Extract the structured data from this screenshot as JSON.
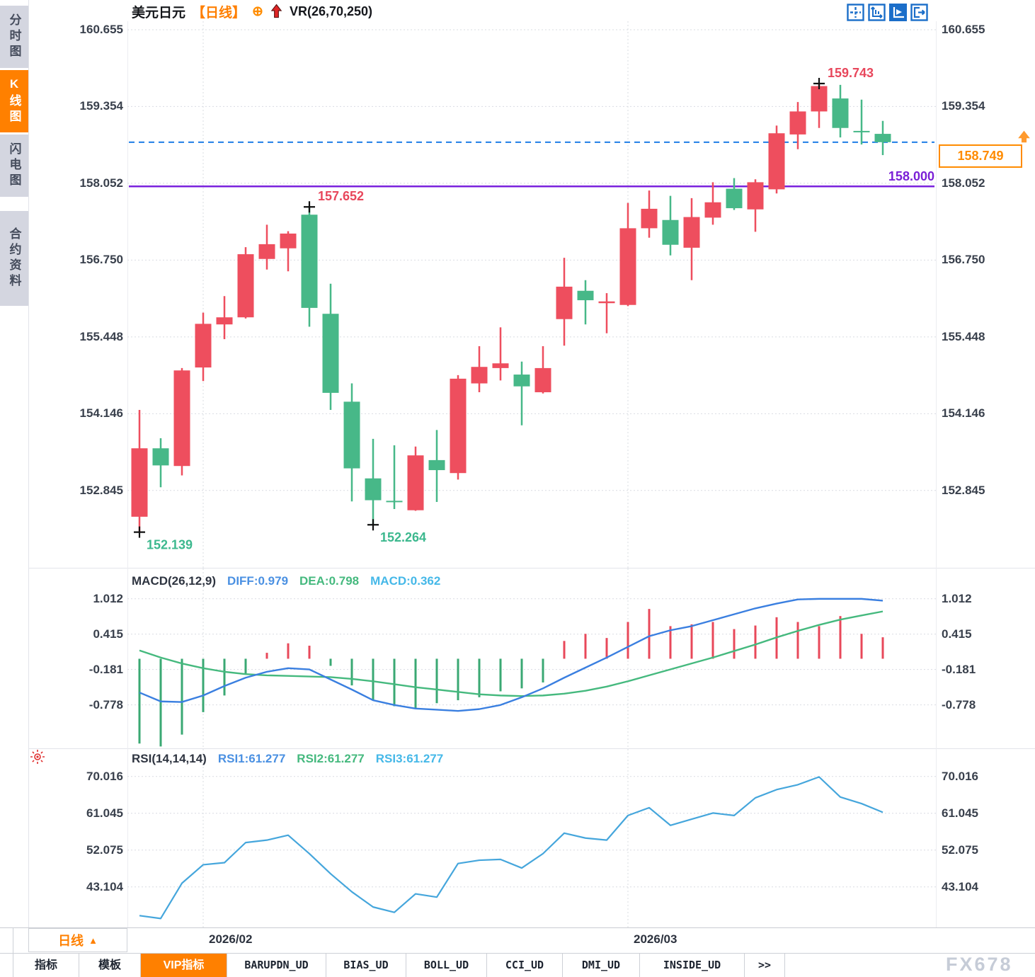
{
  "sidebar": {
    "items": [
      {
        "label": "分时图",
        "active": false
      },
      {
        "label": "K线图",
        "active": true
      },
      {
        "label": "闪电图",
        "active": false
      },
      {
        "label": "合约资料",
        "active": false
      }
    ]
  },
  "header": {
    "symbol": "美元日元",
    "period": "【日线】",
    "zoom_glyph": "⊕",
    "indicator": "VR(26,70,250)"
  },
  "toolbar": {
    "icons": [
      "pan-crosshair",
      "axis-scale",
      "axis-pointer-active",
      "exit-chart"
    ]
  },
  "price_tag": {
    "label": "158.749"
  },
  "chart_data": {
    "type": "candlestick",
    "symbol": "美元日元",
    "interval": "日线",
    "overlay_indicator": "VR(26,70,250)",
    "x_axis": {
      "labels": [
        {
          "text": "2026/02",
          "candle": 3
        },
        {
          "text": "2026/03",
          "candle": 23
        }
      ]
    },
    "price_pane": {
      "y_ticks": [
        "160.655",
        "159.354",
        "158.052",
        "156.750",
        "155.448",
        "154.146",
        "152.845"
      ],
      "candles": [
        [
          152.4,
          154.21,
          152.14,
          153.56
        ],
        [
          153.56,
          153.73,
          152.9,
          153.27
        ],
        [
          153.26,
          154.92,
          153.1,
          154.88
        ],
        [
          154.93,
          155.86,
          154.7,
          155.67
        ],
        [
          155.66,
          156.14,
          155.41,
          155.78
        ],
        [
          155.78,
          156.97,
          155.76,
          156.85
        ],
        [
          156.77,
          157.35,
          156.59,
          157.02
        ],
        [
          156.95,
          157.24,
          156.56,
          157.2
        ],
        [
          157.52,
          157.652,
          155.62,
          155.94
        ],
        [
          155.84,
          156.35,
          154.21,
          154.5
        ],
        [
          154.35,
          154.66,
          152.66,
          153.22
        ],
        [
          153.05,
          153.72,
          152.264,
          152.68
        ],
        [
          152.67,
          153.61,
          152.53,
          152.65
        ],
        [
          152.51,
          153.59,
          152.5,
          153.44
        ],
        [
          153.36,
          153.87,
          152.65,
          153.19
        ],
        [
          153.14,
          154.8,
          153.03,
          154.74
        ],
        [
          154.66,
          155.29,
          154.51,
          154.94
        ],
        [
          154.92,
          155.61,
          154.71,
          155.0
        ],
        [
          154.81,
          155.03,
          153.95,
          154.61
        ],
        [
          154.51,
          155.29,
          154.49,
          154.92
        ],
        [
          155.75,
          156.79,
          155.3,
          156.3
        ],
        [
          156.23,
          156.41,
          155.66,
          156.07
        ],
        [
          156.02,
          156.19,
          155.51,
          156.05
        ],
        [
          155.99,
          157.72,
          155.97,
          157.29
        ],
        [
          157.29,
          157.93,
          157.13,
          157.62
        ],
        [
          157.43,
          157.84,
          156.83,
          157.01
        ],
        [
          156.96,
          157.8,
          156.41,
          157.48
        ],
        [
          157.47,
          158.07,
          157.35,
          157.73
        ],
        [
          157.96,
          158.14,
          157.6,
          157.63
        ],
        [
          157.61,
          158.12,
          157.23,
          158.07
        ],
        [
          157.95,
          159.03,
          157.88,
          158.9
        ],
        [
          158.88,
          159.43,
          158.63,
          159.27
        ],
        [
          159.27,
          159.743,
          158.99,
          159.7
        ],
        [
          159.49,
          159.72,
          158.83,
          158.99
        ],
        [
          158.94,
          159.47,
          158.71,
          158.92
        ],
        [
          158.89,
          159.11,
          158.53,
          158.749
        ]
      ],
      "current_price_line": {
        "value": 158.749,
        "label": "158.749"
      },
      "horizontal_line": {
        "value": 158.0,
        "label": "158.000"
      },
      "annotations": [
        {
          "text": "159.743",
          "price": 159.743,
          "candle": 32,
          "side": "high",
          "color": "#e8475c"
        },
        {
          "text": "157.652",
          "price": 157.652,
          "candle": 8,
          "side": "high",
          "color": "#e8475c"
        },
        {
          "text": "152.139",
          "price": 152.139,
          "candle": 0,
          "side": "low",
          "color": "#3cb88e"
        },
        {
          "text": "152.264",
          "price": 152.264,
          "candle": 11,
          "side": "low",
          "color": "#3cb88e"
        }
      ]
    },
    "macd_pane": {
      "title": "MACD(26,12,9)",
      "legend": [
        {
          "text": "DIFF:0.979",
          "color": "#4a90e2"
        },
        {
          "text": "DEA:0.798",
          "color": "#45b97e"
        },
        {
          "text": "MACD:0.362",
          "color": "#45b8e8"
        }
      ],
      "y_ticks": [
        "1.012",
        "0.415",
        "-0.181",
        "-0.778"
      ],
      "diff": [
        -0.57,
        -0.72,
        -0.73,
        -0.62,
        -0.46,
        -0.32,
        -0.22,
        -0.16,
        -0.18,
        -0.35,
        -0.52,
        -0.7,
        -0.78,
        -0.84,
        -0.86,
        -0.88,
        -0.85,
        -0.78,
        -0.65,
        -0.5,
        -0.32,
        -0.15,
        0.02,
        0.2,
        0.38,
        0.48,
        0.55,
        0.65,
        0.75,
        0.85,
        0.93,
        1.0,
        1.01,
        1.01,
        1.01,
        0.979
      ],
      "dea": [
        0.14,
        0.02,
        -0.08,
        -0.16,
        -0.22,
        -0.26,
        -0.28,
        -0.29,
        -0.3,
        -0.31,
        -0.34,
        -0.38,
        -0.43,
        -0.48,
        -0.52,
        -0.56,
        -0.6,
        -0.62,
        -0.63,
        -0.62,
        -0.59,
        -0.54,
        -0.47,
        -0.38,
        -0.28,
        -0.18,
        -0.08,
        0.02,
        0.13,
        0.24,
        0.36,
        0.47,
        0.57,
        0.66,
        0.73,
        0.798
      ],
      "histogram": [
        -1.43,
        -1.48,
        -1.28,
        -0.9,
        -0.62,
        -0.25,
        0.1,
        0.26,
        0.22,
        -0.12,
        -0.45,
        -0.7,
        -0.8,
        -0.83,
        -0.75,
        -0.7,
        -0.65,
        -0.55,
        -0.5,
        -0.4,
        0.3,
        0.42,
        0.35,
        0.62,
        0.84,
        0.55,
        0.58,
        0.62,
        0.5,
        0.56,
        0.7,
        0.62,
        0.55,
        0.72,
        0.42,
        0.362
      ]
    },
    "rsi_pane": {
      "title": "RSI(14,14,14)",
      "legend": [
        {
          "text": "RSI1:61.277",
          "color": "#4a90e2"
        },
        {
          "text": "RSI2:61.277",
          "color": "#45b97e"
        },
        {
          "text": "RSI3:61.277",
          "color": "#45b8e8"
        }
      ],
      "y_ticks": [
        "70.016",
        "61.045",
        "52.075",
        "43.104"
      ],
      "rsi": [
        36.1,
        35.4,
        44.0,
        48.5,
        49.0,
        53.9,
        54.5,
        55.7,
        51.2,
        46.3,
        41.9,
        38.2,
        36.9,
        41.4,
        40.6,
        48.8,
        49.6,
        49.8,
        47.7,
        51.2,
        56.2,
        55.0,
        54.5,
        60.5,
        62.4,
        58.1,
        59.6,
        61.1,
        60.5,
        64.8,
        66.8,
        68.0,
        69.9,
        65.0,
        63.4,
        61.277
      ]
    },
    "colors": {
      "bull": "#ee4e5e",
      "bear": "#47b888",
      "hist_pos": "#e8485a",
      "hist_neg": "#3aa873",
      "diff_line": "#3a7fe0",
      "dea_line": "#45b97e",
      "rsi_line": "#45a6dc",
      "current_price_line": "#1e7ee6",
      "horizontal_line": "#7a22dd",
      "grid": "#d9dce2",
      "accent": "#ff8000",
      "toolbar_blue": "#1b6ec9"
    }
  },
  "footer": {
    "period_label": "日线",
    "period_arrow": "▲",
    "tabs": [
      {
        "label": "指标",
        "active": false
      },
      {
        "label": "模板",
        "active": false
      },
      {
        "label": "VIP指标",
        "active": true
      },
      {
        "label": "BARUPDN_UD",
        "active": false
      },
      {
        "label": "BIAS_UD",
        "active": false
      },
      {
        "label": "BOLL_UD",
        "active": false
      },
      {
        "label": "CCI_UD",
        "active": false
      },
      {
        "label": "DMI_UD",
        "active": false
      },
      {
        "label": "INSIDE_UD",
        "active": false
      },
      {
        "label": ">>",
        "active": false
      }
    ],
    "watermark": "FX678"
  }
}
